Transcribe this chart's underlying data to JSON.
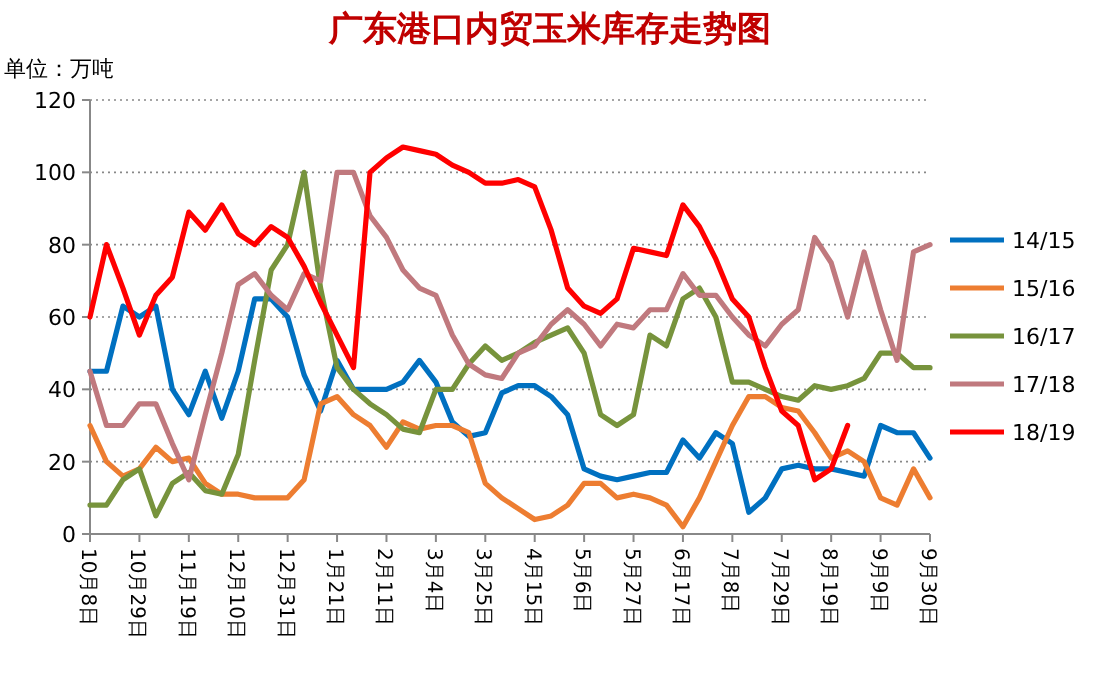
{
  "chart_data": {
    "type": "line",
    "title": "广东港口内贸玉米库存走势图",
    "ylabel": "单位：万吨",
    "categories": [
      "10月8日",
      null,
      null,
      "10月29日",
      null,
      null,
      "11月19日",
      null,
      null,
      "12月10日",
      null,
      null,
      "12月31日",
      null,
      null,
      "1月21日",
      null,
      null,
      "2月11日",
      null,
      null,
      "3月4日",
      null,
      null,
      "3月25日",
      null,
      null,
      "4月15日",
      null,
      null,
      "5月6日",
      null,
      null,
      "5月27日",
      null,
      null,
      "6月17日",
      null,
      null,
      "7月8日",
      null,
      null,
      "7月29日",
      null,
      null,
      "8月19日",
      null,
      null,
      "9月9日",
      null,
      null,
      "9月30日"
    ],
    "ylim": [
      0,
      120
    ],
    "yticks": [
      0,
      20,
      40,
      60,
      80,
      100,
      120
    ],
    "grid": "y",
    "legend": "right",
    "line_style": "solid",
    "marker": "none",
    "series": [
      {
        "name": "14/15",
        "color": "#0070c0",
        "values": [
          45,
          45,
          63,
          60,
          63,
          40,
          33,
          45,
          32,
          45,
          65,
          65,
          60,
          44,
          34,
          48,
          40,
          40,
          40,
          42,
          48,
          42,
          31,
          27,
          28,
          39,
          41,
          41,
          38,
          33,
          18,
          16,
          15,
          16,
          17,
          17,
          26,
          21,
          28,
          25,
          6,
          10,
          18,
          19,
          18,
          18,
          17,
          16,
          30,
          28,
          28,
          21
        ]
      },
      {
        "name": "15/16",
        "color": "#ed7d31",
        "values": [
          30,
          20,
          16,
          18,
          24,
          20,
          21,
          14,
          11,
          11,
          10,
          10,
          10,
          15,
          36,
          38,
          33,
          30,
          24,
          31,
          29,
          30,
          30,
          28,
          14,
          10,
          7,
          4,
          5,
          8,
          14,
          14,
          10,
          11,
          10,
          8,
          2,
          10,
          20,
          30,
          38,
          38,
          35,
          34,
          28,
          21,
          23,
          20,
          10,
          8,
          18,
          10
        ]
      },
      {
        "name": "16/17",
        "color": "#77933c",
        "values": [
          8,
          8,
          15,
          18,
          5,
          14,
          17,
          12,
          11,
          22,
          48,
          73,
          80,
          100,
          68,
          46,
          40,
          36,
          33,
          29,
          28,
          40,
          40,
          47,
          52,
          48,
          50,
          53,
          55,
          57,
          50,
          33,
          30,
          33,
          55,
          52,
          65,
          68,
          60,
          42,
          42,
          40,
          38,
          37,
          41,
          40,
          41,
          43,
          50,
          50,
          46,
          46
        ]
      },
      {
        "name": "17/18",
        "color": "#c0797e",
        "values": [
          45,
          30,
          30,
          36,
          36,
          25,
          15,
          33,
          50,
          69,
          72,
          66,
          62,
          72,
          70,
          100,
          100,
          88,
          82,
          73,
          68,
          66,
          55,
          47,
          44,
          43,
          50,
          52,
          58,
          62,
          58,
          52,
          58,
          57,
          62,
          62,
          72,
          66,
          66,
          60,
          55,
          52,
          58,
          62,
          82,
          75,
          60,
          78,
          62,
          48,
          78,
          80
        ]
      },
      {
        "name": "18/19",
        "color": "#ff0000",
        "values": [
          60,
          80,
          68,
          55,
          66,
          71,
          89,
          84,
          91,
          83,
          80,
          85,
          82,
          74,
          64,
          55,
          46,
          100,
          104,
          107,
          106,
          105,
          102,
          100,
          97,
          97,
          98,
          96,
          84,
          68,
          63,
          61,
          65,
          79,
          78,
          77,
          91,
          85,
          76,
          65,
          60,
          46,
          34,
          30,
          15,
          18,
          30,
          null,
          null,
          null,
          null,
          null
        ]
      }
    ]
  }
}
